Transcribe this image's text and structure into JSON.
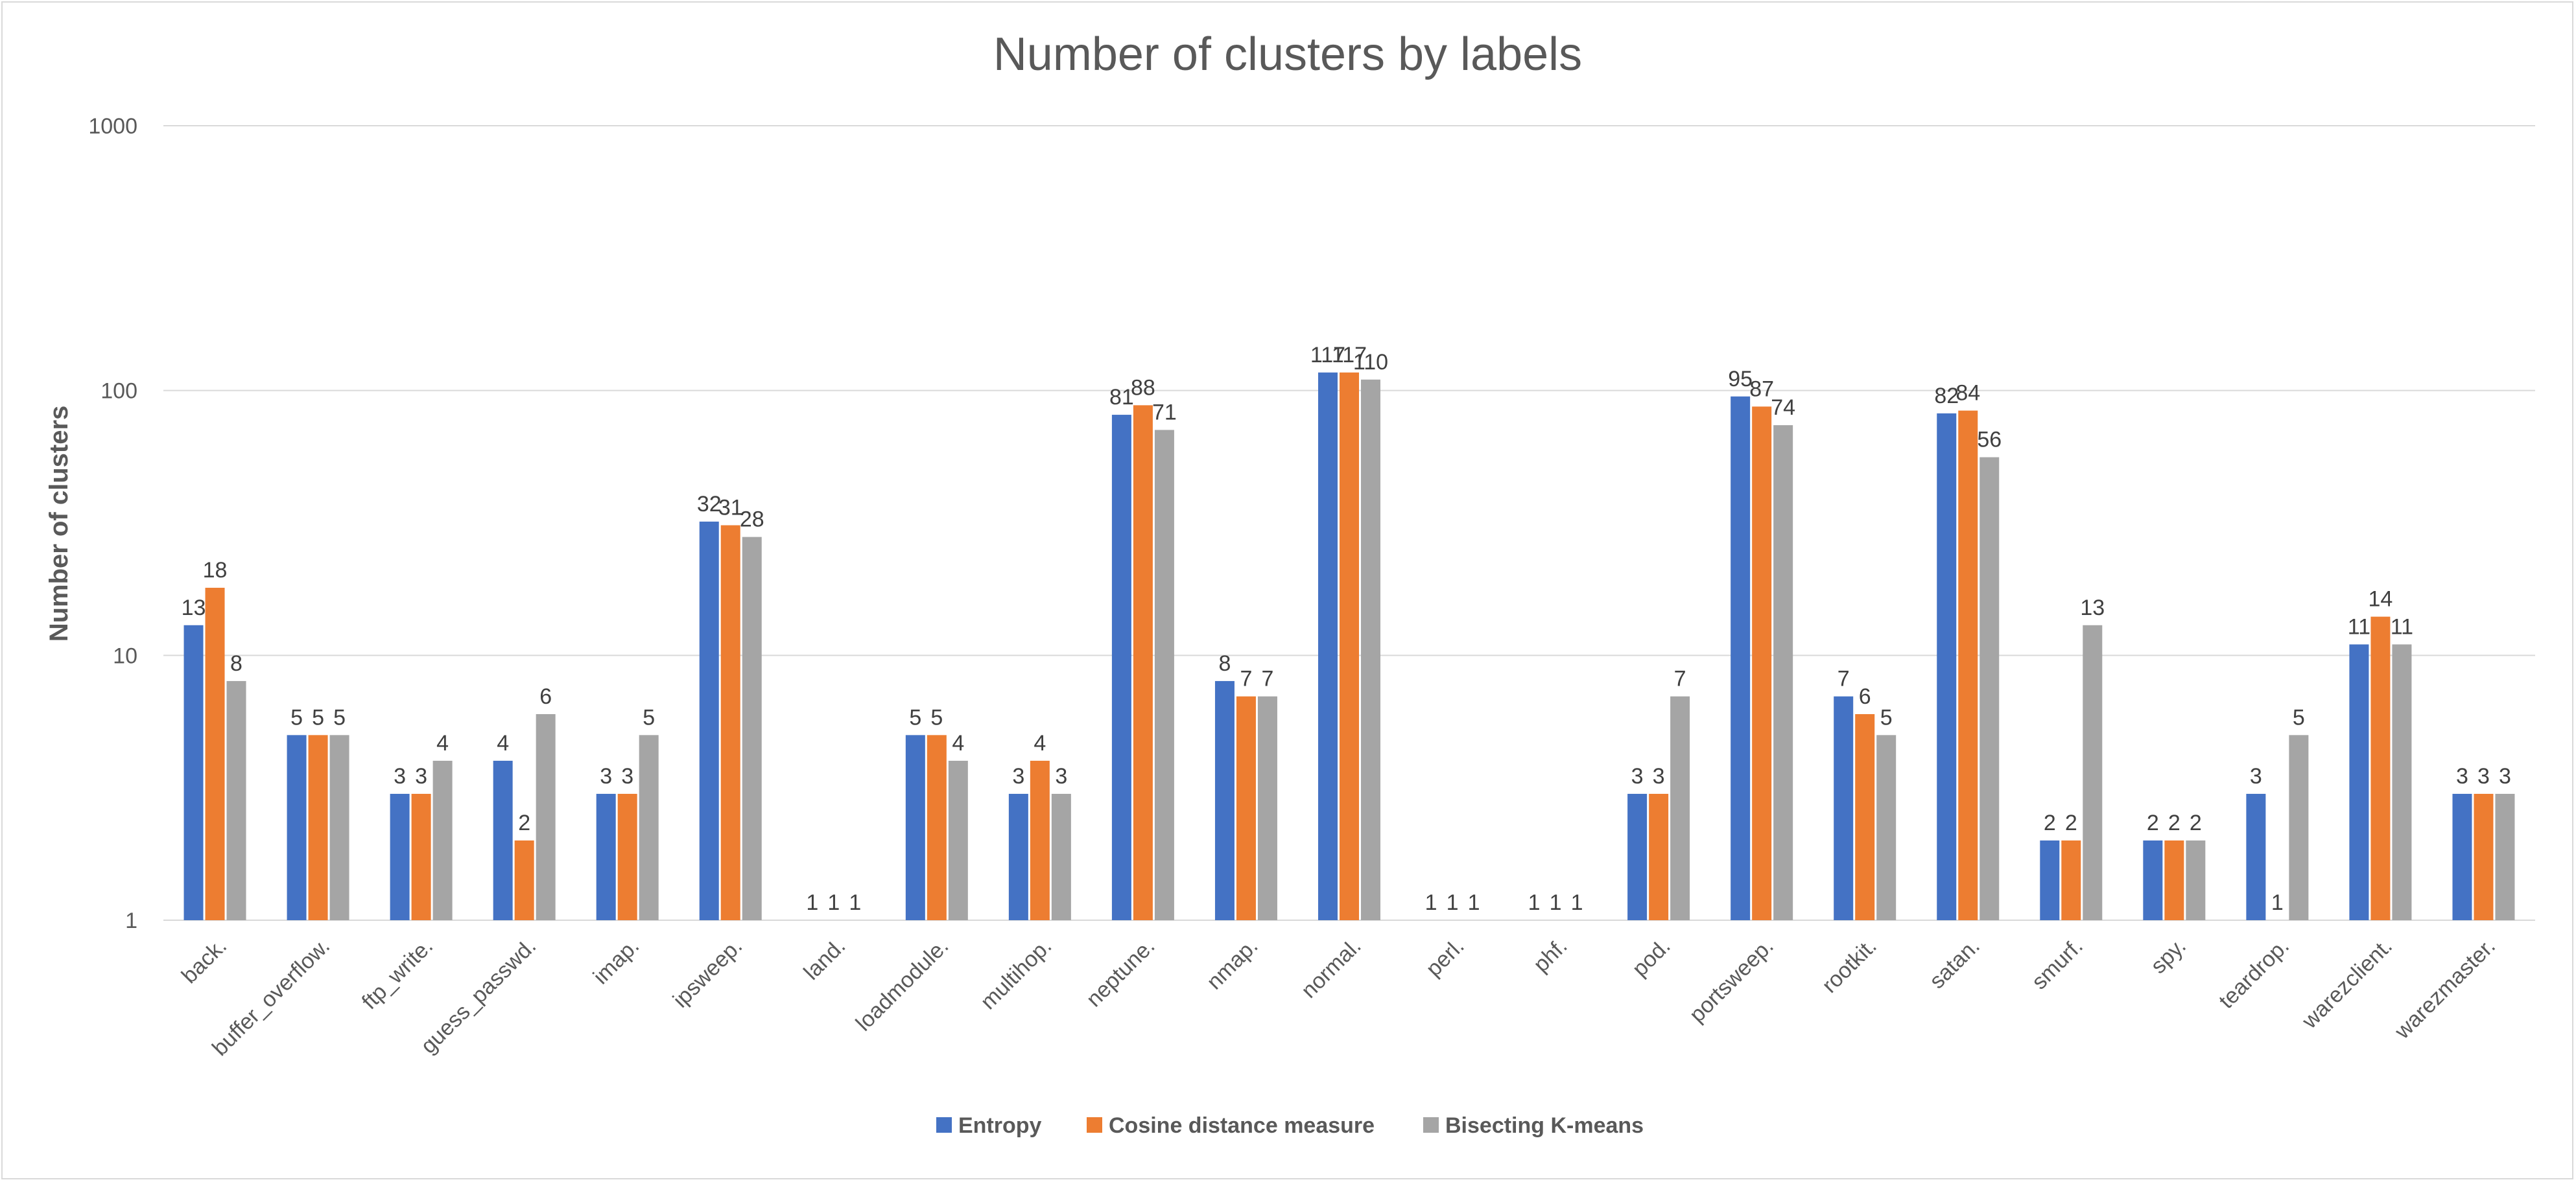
{
  "chart_data": {
    "type": "bar",
    "title": "Number of clusters by labels",
    "xlabel": "",
    "ylabel": "Number of clusters",
    "yscale": "log",
    "ylim": [
      1,
      1000
    ],
    "yticks": [
      "1",
      "10",
      "100",
      "1000"
    ],
    "grid": true,
    "legend_position": "bottom",
    "categories": [
      "back.",
      "buffer_overflow.",
      "ftp_write.",
      "guess_passwd.",
      "imap.",
      "ipsweep.",
      "land.",
      "loadmodule.",
      "multihop.",
      "neptune.",
      "nmap.",
      "normal.",
      "perl.",
      "phf.",
      "pod.",
      "portsweep.",
      "rootkit.",
      "satan.",
      "smurf.",
      "spy.",
      "teardrop.",
      "warezclient.",
      "warezmaster."
    ],
    "series": [
      {
        "name": "Entropy",
        "color": "#4472c4",
        "values": [
          13,
          5,
          3,
          4,
          3,
          32,
          1,
          5,
          3,
          81,
          8,
          117,
          1,
          1,
          3,
          95,
          7,
          82,
          2,
          2,
          3,
          11,
          3
        ]
      },
      {
        "name": "Cosine distance measure",
        "color": "#ed7d31",
        "values": [
          18,
          5,
          3,
          2,
          3,
          31,
          1,
          5,
          4,
          88,
          7,
          117,
          1,
          1,
          3,
          87,
          6,
          84,
          2,
          2,
          1,
          14,
          3
        ]
      },
      {
        "name": "Bisecting K-means",
        "color": "#a5a5a5",
        "values": [
          8,
          5,
          4,
          6,
          5,
          28,
          1,
          4,
          3,
          71,
          7,
          110,
          1,
          1,
          7,
          74,
          5,
          56,
          13,
          2,
          5,
          11,
          3
        ]
      }
    ]
  }
}
